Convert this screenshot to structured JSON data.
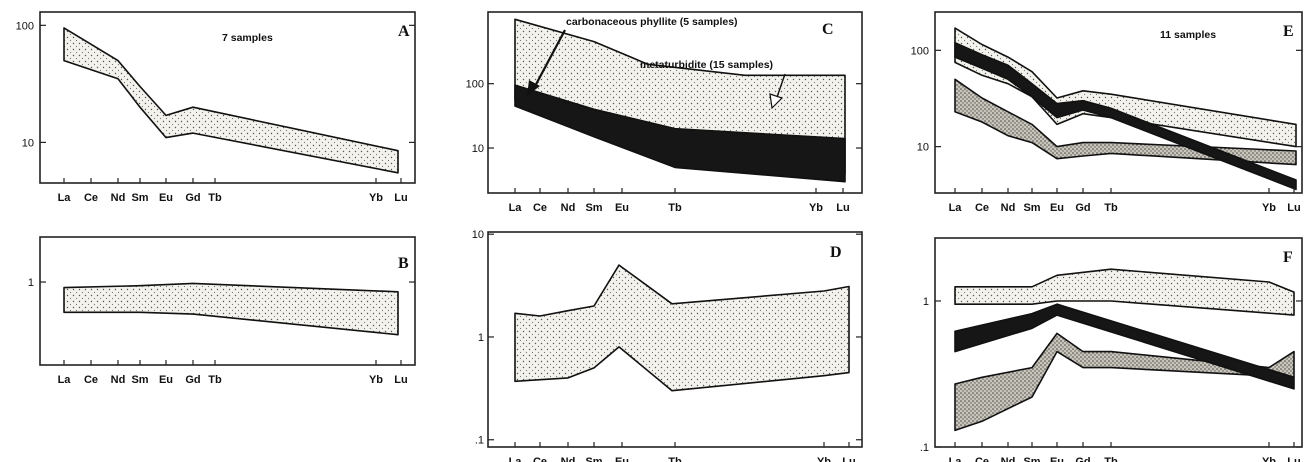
{
  "chart_data": [
    {
      "panel": "A",
      "type": "area",
      "scale": "log",
      "ylim": [
        4.5,
        130
      ],
      "yticks": [
        {
          "v": 100,
          "label": "100"
        },
        {
          "v": 10,
          "label": "10"
        }
      ],
      "categories": [
        "La",
        "Ce",
        "Nd",
        "Sm",
        "Eu",
        "Gd",
        "Tb",
        "Yb",
        "Lu"
      ],
      "annotation": "7 samples",
      "series": [
        {
          "fill": "dotted",
          "upper": [
            [
              0,
              95
            ],
            [
              2,
              50
            ],
            [
              3,
              30
            ],
            [
              4,
              17
            ],
            [
              5,
              20
            ],
            [
              9,
              8.5
            ]
          ],
          "lower": [
            [
              0,
              50
            ],
            [
              2,
              35
            ],
            [
              3,
              20
            ],
            [
              4,
              11
            ],
            [
              5,
              12
            ],
            [
              9,
              5.5
            ]
          ]
        }
      ]
    },
    {
      "panel": "B",
      "type": "area",
      "scale": "log",
      "ylim": [
        0.15,
        2.8
      ],
      "yticks": [
        {
          "v": 1,
          "label": "1"
        }
      ],
      "categories": [
        "La",
        "Ce",
        "Nd",
        "Sm",
        "Eu",
        "Gd",
        "Tb",
        "Yb",
        "Lu"
      ],
      "series": [
        {
          "fill": "dotted",
          "upper": [
            [
              0,
              0.88
            ],
            [
              3,
              0.92
            ],
            [
              5,
              0.97
            ],
            [
              9,
              0.8
            ]
          ],
          "lower": [
            [
              0,
              0.5
            ],
            [
              3,
              0.5
            ],
            [
              5,
              0.48
            ],
            [
              9,
              0.3
            ]
          ]
        }
      ]
    },
    {
      "panel": "C",
      "type": "area",
      "scale": "log",
      "ylim": [
        2,
        1300
      ],
      "yticks": [
        {
          "v": 100,
          "label": "100"
        },
        {
          "v": 10,
          "label": "10"
        }
      ],
      "categories": [
        "La",
        "Ce",
        "Nd",
        "Sm",
        "Eu",
        "Tb",
        "Yb",
        "Lu"
      ],
      "annotations": [
        "carbonaceous phyllite (5 samples)",
        "metaturbidite (15 samples)"
      ],
      "series": [
        {
          "name": "metaturbidite (15 samples)",
          "fill": "dotted",
          "upper": [
            [
              0,
              1000
            ],
            [
              3,
              450
            ],
            [
              5,
              200
            ],
            [
              8,
              135
            ],
            [
              10,
              135
            ]
          ],
          "lower": [
            [
              0,
              55
            ],
            [
              3,
              25
            ],
            [
              5,
              13
            ],
            [
              8,
              6
            ],
            [
              10,
              4
            ]
          ]
        },
        {
          "name": "carbonaceous phyllite (5 samples)",
          "fill": "black",
          "upper": [
            [
              0,
              95
            ],
            [
              3,
              40
            ],
            [
              6,
              20
            ],
            [
              10,
              14
            ]
          ],
          "lower": [
            [
              0,
              45
            ],
            [
              3,
              15
            ],
            [
              6,
              5
            ],
            [
              10,
              3
            ]
          ]
        }
      ]
    },
    {
      "panel": "D",
      "type": "area",
      "scale": "log",
      "ylim": [
        0.085,
        10.5
      ],
      "yticks": [
        {
          "v": 10,
          "label": "10"
        },
        {
          "v": 1,
          "label": "1"
        },
        {
          "v": 0.1,
          "label": ".1"
        }
      ],
      "categories": [
        "La",
        "Ce",
        "Nd",
        "Sm",
        "Eu",
        "Tb",
        "Yb",
        "Lu"
      ],
      "series": [
        {
          "fill": "dotted",
          "upper": [
            [
              0,
              1.7
            ],
            [
              1,
              1.6
            ],
            [
              2,
              1.8
            ],
            [
              3,
              2.0
            ],
            [
              4,
              5.0
            ],
            [
              6,
              2.1
            ],
            [
              10,
              2.8
            ],
            [
              11,
              3.1
            ]
          ],
          "lower": [
            [
              0,
              0.37
            ],
            [
              2,
              0.4
            ],
            [
              3,
              0.5
            ],
            [
              4,
              0.8
            ],
            [
              6,
              0.3
            ],
            [
              10,
              0.42
            ],
            [
              11,
              0.45
            ]
          ]
        }
      ]
    },
    {
      "panel": "E",
      "type": "area",
      "scale": "log",
      "ylim": [
        3.3,
        250
      ],
      "yticks": [
        {
          "v": 100,
          "label": "100"
        },
        {
          "v": 10,
          "label": "10"
        }
      ],
      "categories": [
        "La",
        "Ce",
        "Nd",
        "Sm",
        "Eu",
        "Gd",
        "Tb",
        "Yb",
        "Lu"
      ],
      "annotation": "11 samples",
      "series": [
        {
          "fill": "dotted",
          "upper": [
            [
              0,
              170
            ],
            [
              1,
              115
            ],
            [
              2,
              85
            ],
            [
              3,
              60
            ],
            [
              4,
              32
            ],
            [
              5,
              38
            ],
            [
              6,
              35
            ],
            [
              10,
              17
            ]
          ],
          "lower": [
            [
              0,
              75
            ],
            [
              1,
              55
            ],
            [
              2,
              45
            ],
            [
              3,
              33
            ],
            [
              4,
              17
            ],
            [
              5,
              22
            ],
            [
              6,
              20
            ],
            [
              10,
              10
            ]
          ]
        },
        {
          "fill": "darkdotted",
          "upper": [
            [
              0,
              50
            ],
            [
              1,
              32
            ],
            [
              2,
              23
            ],
            [
              3,
              17
            ],
            [
              4,
              10
            ],
            [
              5,
              11
            ],
            [
              6,
              11
            ],
            [
              10,
              9
            ]
          ],
          "lower": [
            [
              0,
              23
            ],
            [
              1,
              18
            ],
            [
              2,
              13
            ],
            [
              3,
              11
            ],
            [
              4,
              7.5
            ],
            [
              5,
              8
            ],
            [
              6,
              8.5
            ],
            [
              10,
              6.5
            ]
          ]
        },
        {
          "fill": "black",
          "upper": [
            [
              0,
              120
            ],
            [
              1,
              90
            ],
            [
              2,
              70
            ],
            [
              3,
              45
            ],
            [
              4,
              28
            ],
            [
              5,
              30
            ],
            [
              6,
              25
            ],
            [
              10,
              4.5
            ]
          ],
          "lower": [
            [
              0,
              85
            ],
            [
              1,
              65
            ],
            [
              2,
              50
            ],
            [
              3,
              33
            ],
            [
              4,
              20
            ],
            [
              5,
              24
            ],
            [
              6,
              20
            ],
            [
              10,
              3.6
            ]
          ]
        }
      ]
    },
    {
      "panel": "F",
      "type": "area",
      "scale": "log",
      "ylim": [
        0.1,
        2.7
      ],
      "yticks": [
        {
          "v": 1,
          "label": "1"
        },
        {
          "v": 0.1,
          "label": ".1"
        }
      ],
      "categories": [
        "La",
        "Ce",
        "Nd",
        "Sm",
        "Eu",
        "Gd",
        "Tb",
        "Yb",
        "Lu"
      ],
      "series": [
        {
          "fill": "dotted",
          "upper": [
            [
              0,
              1.25
            ],
            [
              3,
              1.25
            ],
            [
              4,
              1.5
            ],
            [
              6,
              1.65
            ],
            [
              10,
              1.35
            ],
            [
              11,
              1.15
            ]
          ],
          "lower": [
            [
              0,
              0.95
            ],
            [
              3,
              0.95
            ],
            [
              4,
              1.0
            ],
            [
              6,
              1.0
            ],
            [
              11,
              0.8
            ]
          ]
        },
        {
          "fill": "darkdotted",
          "upper": [
            [
              0,
              0.27
            ],
            [
              1,
              0.3
            ],
            [
              3,
              0.35
            ],
            [
              4,
              0.6
            ],
            [
              5,
              0.45
            ],
            [
              6,
              0.45
            ],
            [
              10,
              0.35
            ],
            [
              11,
              0.45
            ]
          ],
          "lower": [
            [
              0,
              0.13
            ],
            [
              1,
              0.15
            ],
            [
              3,
              0.22
            ],
            [
              4,
              0.45
            ],
            [
              5,
              0.35
            ],
            [
              6,
              0.35
            ],
            [
              11,
              0.3
            ]
          ]
        },
        {
          "fill": "black",
          "upper": [
            [
              0,
              0.62
            ],
            [
              3,
              0.82
            ],
            [
              4,
              0.95
            ],
            [
              11,
              0.3
            ]
          ],
          "lower": [
            [
              0,
              0.45
            ],
            [
              3,
              0.65
            ],
            [
              4,
              0.8
            ],
            [
              11,
              0.25
            ]
          ]
        }
      ]
    }
  ]
}
